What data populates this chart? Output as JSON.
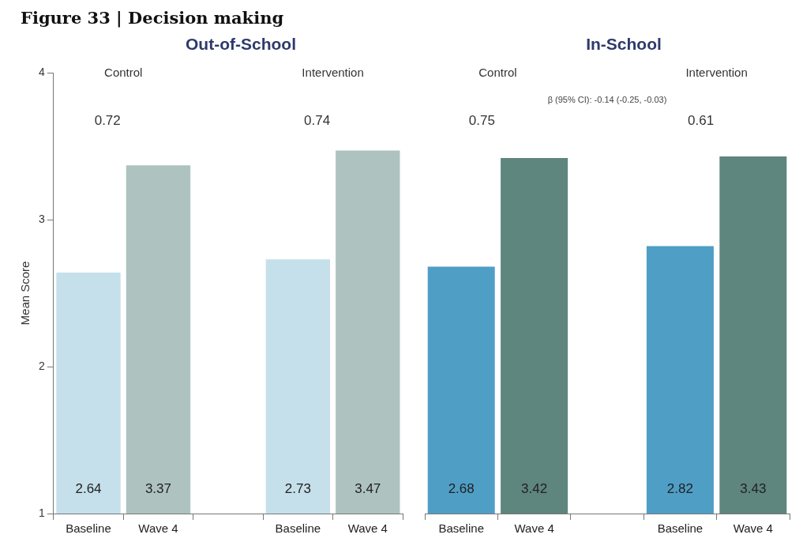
{
  "chart_data": [
    {
      "type": "bar",
      "title": "Figure 33 | Decision making",
      "subtitle": "Out-of-School",
      "ylabel": "Mean Score",
      "categories": [
        "Baseline",
        "Wave 4",
        null,
        "Baseline",
        "Wave 4"
      ],
      "values": [
        2.64,
        3.37,
        null,
        2.73,
        3.47
      ],
      "colors": [
        "#c5e0ea",
        "#aec3bf",
        "#c5e0ea",
        "#c5e0ea",
        "#aec3bf"
      ],
      "ylim": [
        1,
        4
      ],
      "yticks": [
        1,
        2,
        3,
        4
      ],
      "grid": false,
      "legend": false,
      "data_labels": true,
      "annotations": [
        "Control",
        "Intervention",
        "0.72",
        "0.74"
      ]
    },
    {
      "type": "bar",
      "title": "In-School",
      "categories": [
        "Baseline",
        "Wave 4",
        null,
        "Baseline",
        "Wave 4"
      ],
      "values": [
        2.68,
        3.42,
        null,
        2.82,
        3.43
      ],
      "colors": [
        "#4f9ec6",
        "#5e857e",
        "#4f9ec6",
        "#4f9ec6",
        "#5e857e"
      ],
      "ylim": [
        1,
        4
      ],
      "yticks": [
        1,
        2,
        3,
        4
      ],
      "grid": false,
      "legend": false,
      "data_labels": true,
      "tick_labels": "x",
      "annotations": [
        "Control",
        "Intervention",
        "0.75",
        "0.61",
        "β (95% CI): -0.14 (-0.25, -0.03)"
      ]
    }
  ]
}
